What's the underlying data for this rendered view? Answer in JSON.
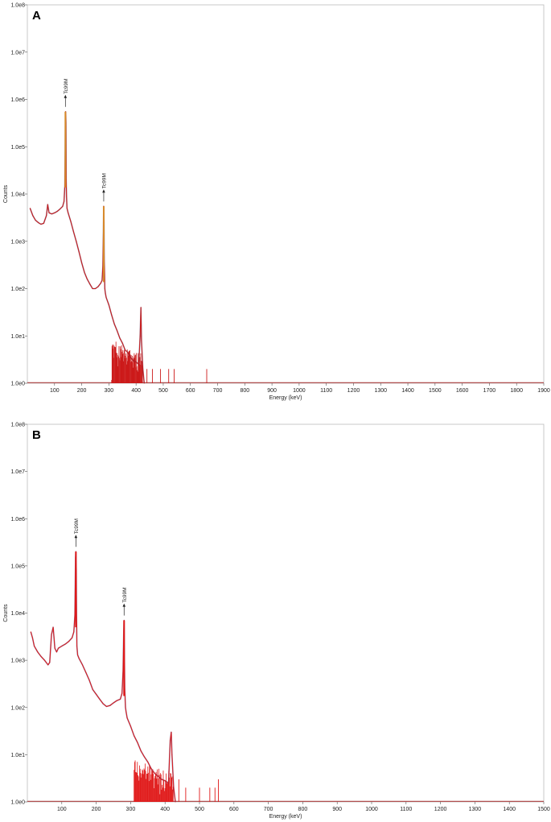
{
  "chart_data": [
    {
      "panel_label": "A",
      "type": "line",
      "xlabel": "Energy (keV)",
      "ylabel": "Counts",
      "yscale": "log",
      "xlim": [
        0,
        1900
      ],
      "ylim": [
        1,
        100000000
      ],
      "x_ticks": [
        100,
        200,
        300,
        400,
        500,
        600,
        700,
        800,
        900,
        1000,
        1100,
        1200,
        1300,
        1400,
        1500,
        1600,
        1700,
        1800,
        1900
      ],
      "y_ticks": [
        "1.0e0",
        "1.0e1",
        "1.0e2",
        "1.0e3",
        "1.0e4",
        "1.0e5",
        "1.0e6",
        "1.0e7",
        "1.0e8"
      ],
      "grid": false,
      "legend": "none",
      "colors": {
        "spectrum": "#cc1a1a",
        "shadow": "#3a2a55",
        "peak": "#d88a2a",
        "frame": "#bbbbbb",
        "axis_line": "#b05050"
      },
      "series": [
        {
          "x": [
            10,
            20,
            30,
            40,
            50,
            60,
            70,
            75,
            80,
            90,
            100,
            110,
            120,
            130,
            135,
            138,
            140,
            141,
            142,
            143,
            144,
            146,
            150,
            160,
            170,
            180,
            190,
            200,
            210,
            220,
            230,
            240,
            250,
            260,
            270,
            275,
            278,
            280,
            281,
            282,
            283,
            284,
            285,
            287,
            290,
            300,
            310,
            320,
            330,
            340,
            350,
            360,
            370,
            380,
            390,
            400,
            410,
            415,
            418,
            420,
            425,
            430
          ],
          "y": [
            5000,
            3500,
            2800,
            2500,
            2300,
            2400,
            3500,
            6000,
            4000,
            3800,
            4000,
            4300,
            4800,
            5500,
            7000,
            15000,
            300000,
            550000,
            320000,
            20000,
            9000,
            5000,
            4000,
            2600,
            1600,
            1000,
            600,
            350,
            220,
            160,
            125,
            100,
            100,
            110,
            130,
            150,
            300,
            2000,
            5500,
            2500,
            400,
            200,
            100,
            80,
            65,
            45,
            28,
            18,
            13,
            9,
            7,
            5,
            4.5,
            3.5,
            3,
            2.8,
            2.5,
            10,
            40,
            8,
            2,
            1
          ]
        }
      ],
      "annotations": [
        {
          "x": 140,
          "y": 550000,
          "text": "Tc99M"
        },
        {
          "x": 281,
          "y": 5500,
          "text": "Tc99M"
        }
      ],
      "isolated_lines": [
        {
          "x": 440,
          "y": 2
        },
        {
          "x": 460,
          "y": 2
        },
        {
          "x": 490,
          "y": 2
        },
        {
          "x": 520,
          "y": 2
        },
        {
          "x": 540,
          "y": 2
        },
        {
          "x": 660,
          "y": 2
        }
      ]
    },
    {
      "panel_label": "B",
      "type": "line",
      "xlabel": "Energy (keV)",
      "ylabel": "Counts",
      "yscale": "log",
      "xlim": [
        0,
        1500
      ],
      "ylim": [
        1,
        100000000
      ],
      "x_ticks": [
        100,
        200,
        300,
        400,
        500,
        600,
        700,
        800,
        900,
        1000,
        1100,
        1200,
        1300,
        1400,
        1500
      ],
      "y_ticks": [
        "1.0e0",
        "1.0e1",
        "1.0e2",
        "1.0e3",
        "1.0e4",
        "1.0e5",
        "1.0e6",
        "1.0e7",
        "1.0e8"
      ],
      "grid": false,
      "legend": "none",
      "colors": {
        "spectrum": "#e01818",
        "shadow": "#2a2a70",
        "peak": "#e01818",
        "frame": "#bbbbbb",
        "axis_line": "#b05050"
      },
      "series": [
        {
          "x": [
            10,
            15,
            20,
            30,
            40,
            50,
            60,
            65,
            70,
            75,
            80,
            85,
            90,
            100,
            110,
            120,
            130,
            135,
            138,
            140,
            141,
            142,
            143,
            144,
            146,
            150,
            160,
            170,
            180,
            190,
            200,
            210,
            220,
            230,
            240,
            250,
            260,
            270,
            275,
            278,
            280,
            281,
            282,
            283,
            284,
            285,
            287,
            290,
            300,
            310,
            320,
            330,
            340,
            350,
            360,
            370,
            380,
            390,
            400,
            410,
            415,
            418,
            420,
            425,
            430
          ],
          "y": [
            4000,
            3000,
            2000,
            1500,
            1200,
            1000,
            800,
            900,
            3500,
            5000,
            1800,
            1500,
            1800,
            2000,
            2200,
            2500,
            3000,
            4000,
            9000,
            150000,
            200000,
            80000,
            8000,
            2000,
            1300,
            1100,
            800,
            550,
            380,
            240,
            190,
            150,
            120,
            105,
            110,
            125,
            140,
            150,
            200,
            600,
            4000,
            7000,
            1000,
            250,
            150,
            100,
            80,
            60,
            40,
            25,
            18,
            12,
            9,
            7,
            5,
            4,
            3.5,
            3,
            2.8,
            2.5,
            20,
            30,
            10,
            2,
            1
          ]
        }
      ],
      "annotations": [
        {
          "x": 141,
          "y": 200000,
          "text": "Tc99M"
        },
        {
          "x": 281,
          "y": 7000,
          "text": "Tc99M"
        }
      ],
      "isolated_lines": [
        {
          "x": 440,
          "y": 3
        },
        {
          "x": 460,
          "y": 2
        },
        {
          "x": 500,
          "y": 2
        },
        {
          "x": 530,
          "y": 2
        },
        {
          "x": 545,
          "y": 2
        },
        {
          "x": 555,
          "y": 3
        }
      ]
    }
  ]
}
